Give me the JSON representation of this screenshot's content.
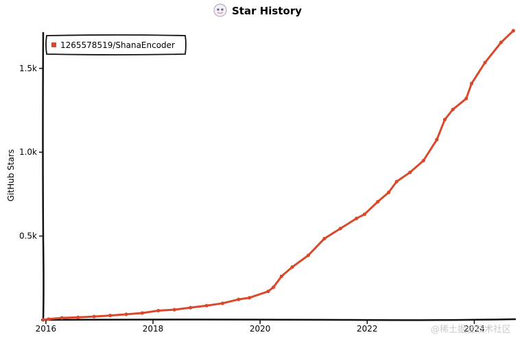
{
  "chart_data": {
    "type": "line",
    "title": "Star History",
    "ylabel": "GitHub Stars",
    "xlabel": "",
    "x_ticks": [
      "2016",
      "2018",
      "2020",
      "2022",
      "2024"
    ],
    "y_ticks": [
      "0.5k",
      "1.0k",
      "1.5k"
    ],
    "xlim": [
      2015.95,
      2024.75
    ],
    "ylim": [
      0,
      1720
    ],
    "grid": false,
    "legend_position": "top-left",
    "series": [
      {
        "name": "1265578519/ShanaEncoder",
        "color": "#d9482b",
        "points": [
          [
            2015.95,
            0
          ],
          [
            2016.05,
            5
          ],
          [
            2016.3,
            12
          ],
          [
            2016.6,
            15
          ],
          [
            2016.9,
            20
          ],
          [
            2017.2,
            26
          ],
          [
            2017.5,
            33
          ],
          [
            2017.8,
            41
          ],
          [
            2018.1,
            55
          ],
          [
            2018.4,
            61
          ],
          [
            2018.7,
            73
          ],
          [
            2019.0,
            85
          ],
          [
            2019.3,
            99
          ],
          [
            2019.6,
            122
          ],
          [
            2019.8,
            132
          ],
          [
            2020.15,
            170
          ],
          [
            2020.25,
            195
          ],
          [
            2020.4,
            260
          ],
          [
            2020.6,
            315
          ],
          [
            2020.9,
            385
          ],
          [
            2021.2,
            485
          ],
          [
            2021.5,
            545
          ],
          [
            2021.8,
            605
          ],
          [
            2021.95,
            630
          ],
          [
            2022.2,
            705
          ],
          [
            2022.4,
            760
          ],
          [
            2022.55,
            825
          ],
          [
            2022.8,
            880
          ],
          [
            2023.05,
            950
          ],
          [
            2023.3,
            1075
          ],
          [
            2023.45,
            1195
          ],
          [
            2023.6,
            1255
          ],
          [
            2023.85,
            1320
          ],
          [
            2023.95,
            1410
          ],
          [
            2024.2,
            1535
          ],
          [
            2024.5,
            1655
          ],
          [
            2024.73,
            1725
          ]
        ]
      }
    ]
  },
  "watermark": "@稀土掘金技术社区",
  "colors": {
    "line": "#d9482b",
    "axis": "#111111",
    "background": "#ffffff"
  }
}
